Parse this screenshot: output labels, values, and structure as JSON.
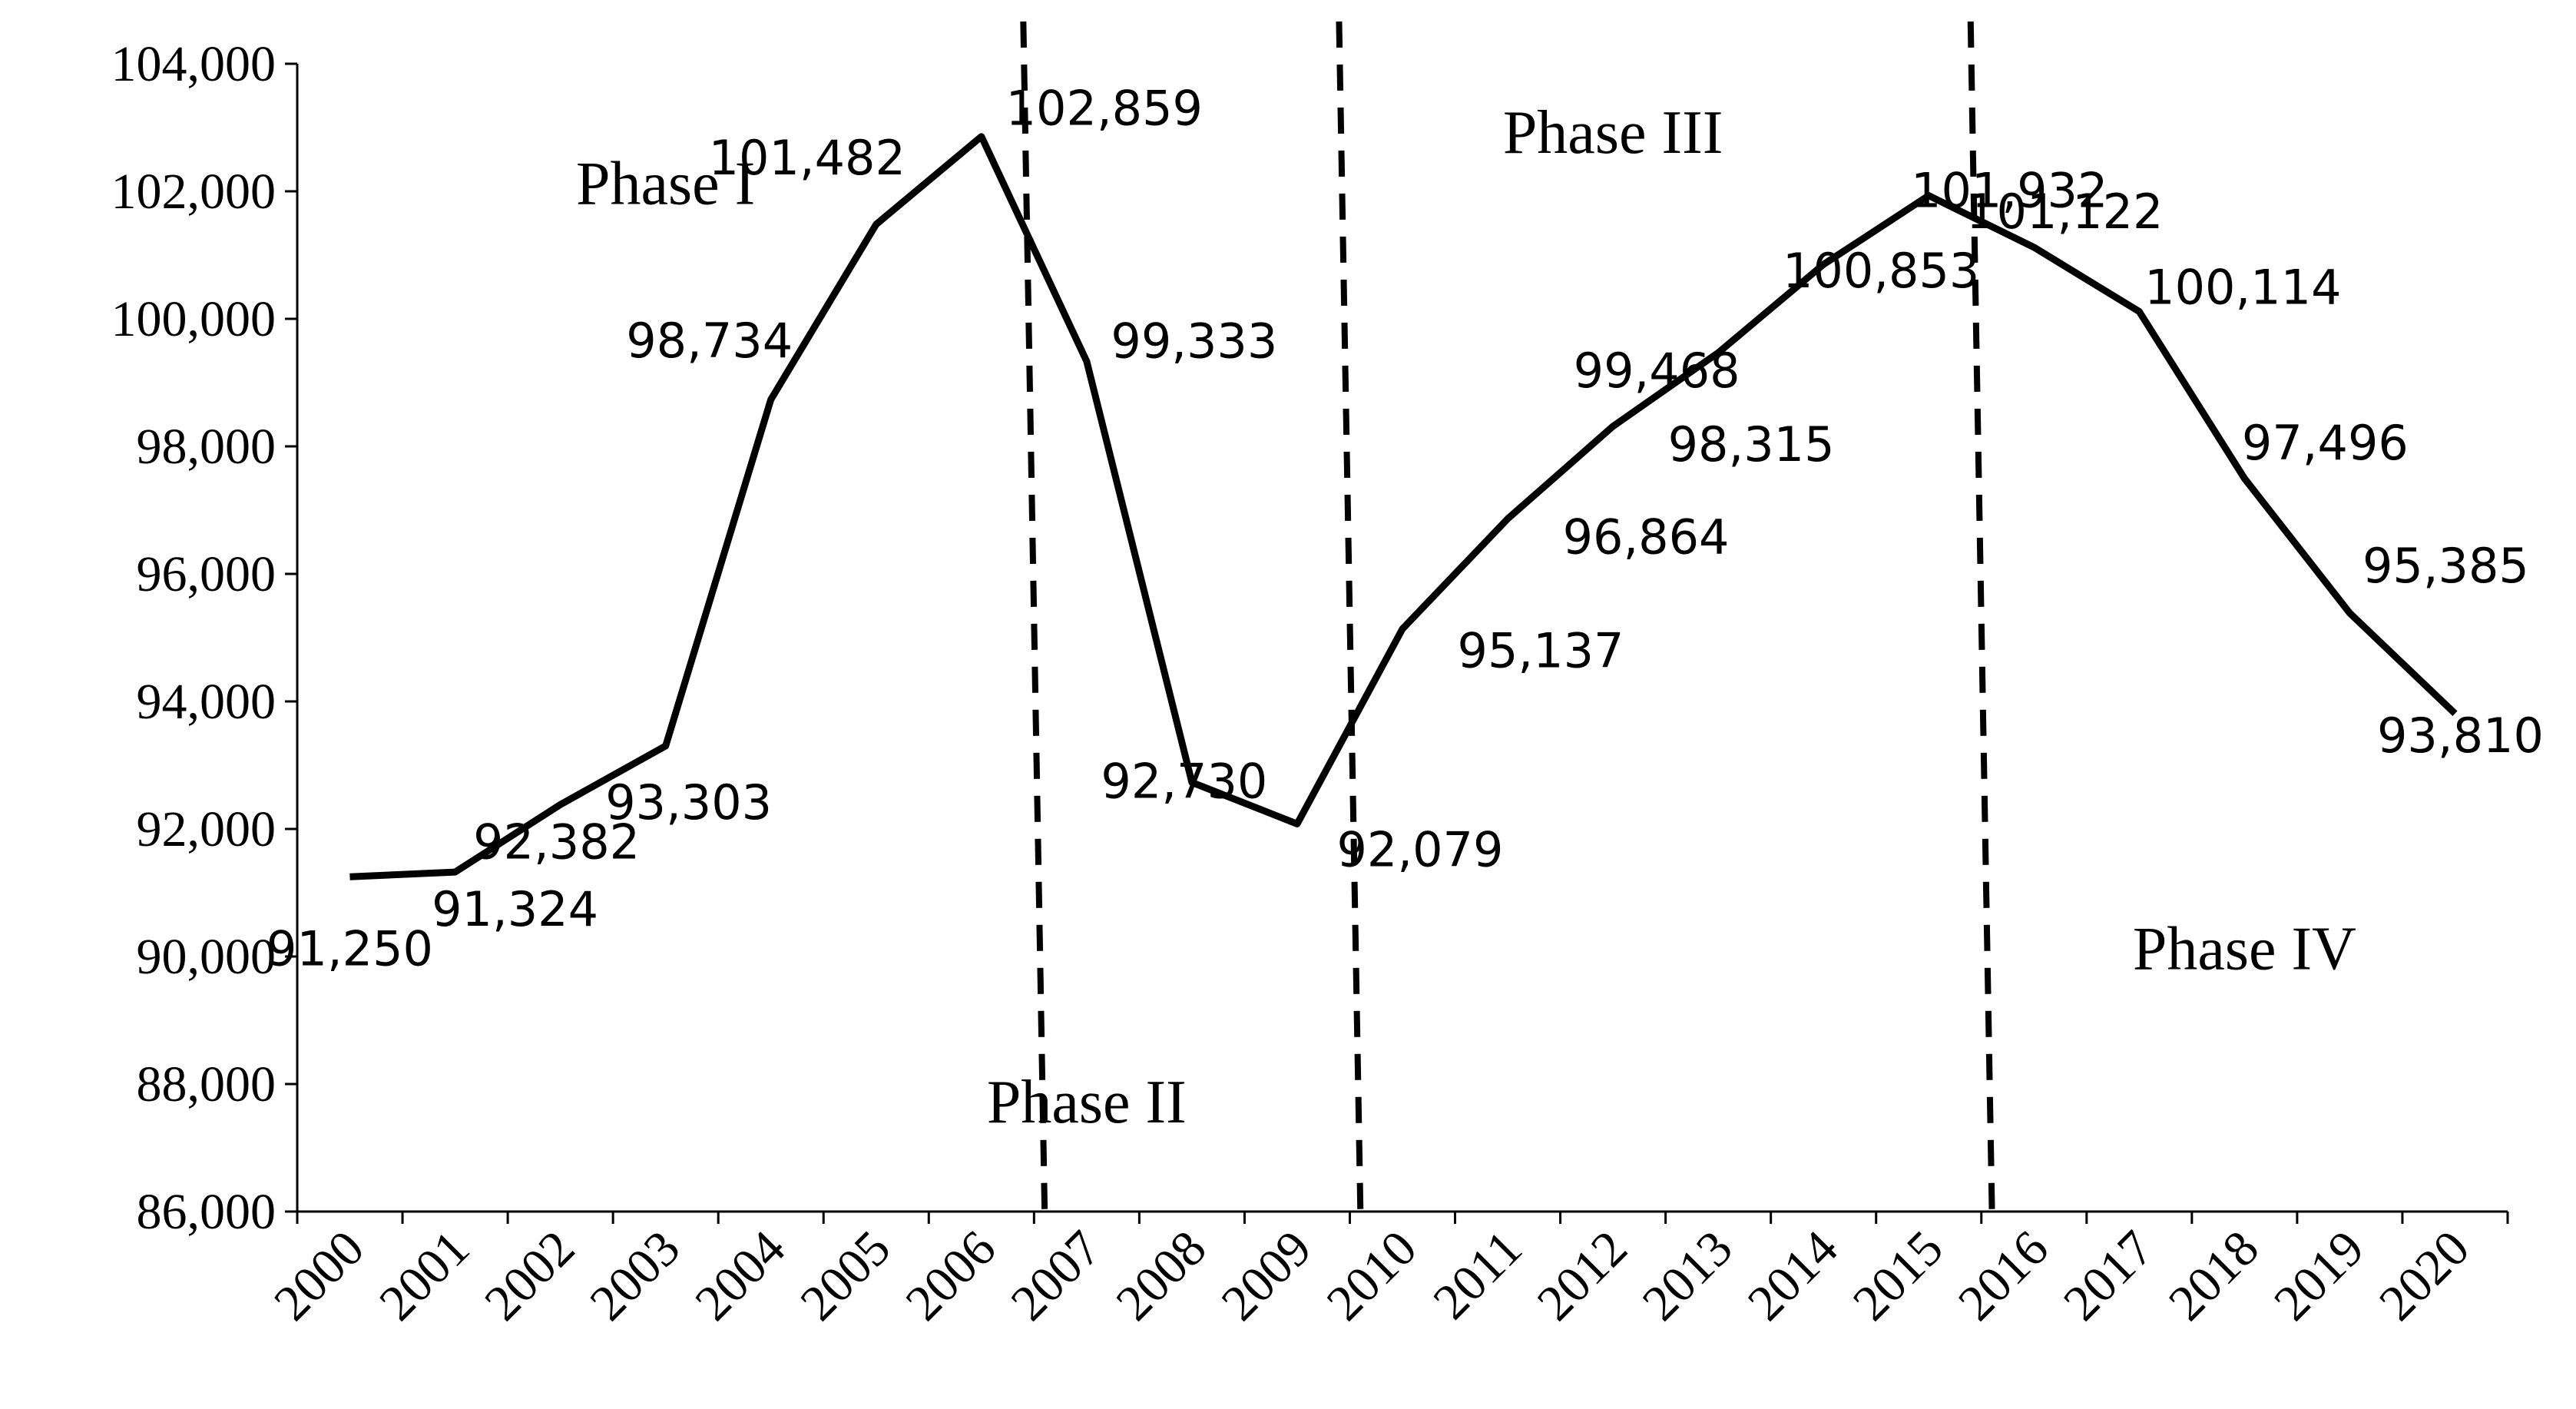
{
  "chart_data": {
    "type": "line",
    "title": "",
    "xlabel": "",
    "ylabel": "",
    "ylim": [
      86000,
      104000
    ],
    "yticks": [
      86000,
      88000,
      90000,
      92000,
      94000,
      96000,
      98000,
      100000,
      102000,
      104000
    ],
    "grid": false,
    "legend": "none",
    "line_color": "#000000",
    "categories": [
      "2000",
      "2001",
      "2002",
      "2003",
      "2004",
      "2005",
      "2006",
      "2007",
      "2008",
      "2009",
      "2010",
      "2011",
      "2012",
      "2013",
      "2014",
      "2015",
      "2016",
      "2017",
      "2018",
      "2019",
      "2020"
    ],
    "values": [
      91250,
      91324,
      92382,
      93303,
      98734,
      101482,
      102859,
      99333,
      92730,
      92079,
      95137,
      96864,
      98315,
      99468,
      100853,
      101932,
      101122,
      100114,
      97496,
      95385,
      93810
    ],
    "data_labels": [
      "91,250",
      "91,324",
      "92,382",
      "93,303",
      "98,734",
      "101,482",
      "102,859",
      "99,333",
      "92,730",
      "92,079",
      "95,137",
      "96,864",
      "98,315",
      "99,468",
      "100,853",
      "101,932",
      "101,122",
      "100,114",
      "97,496",
      "95,385",
      "93,810"
    ],
    "phase_dividers_after": [
      "2006",
      "2009",
      "2015"
    ],
    "annotations": [
      {
        "text": "Phase I",
        "x": "2003",
        "y": 101800
      },
      {
        "text": "Phase II",
        "x": "2007",
        "y": 87400
      },
      {
        "text": "Phase III",
        "x": "2012",
        "y": 102600
      },
      {
        "text": "Phase IV",
        "x": "2018",
        "y": 89800
      }
    ]
  }
}
